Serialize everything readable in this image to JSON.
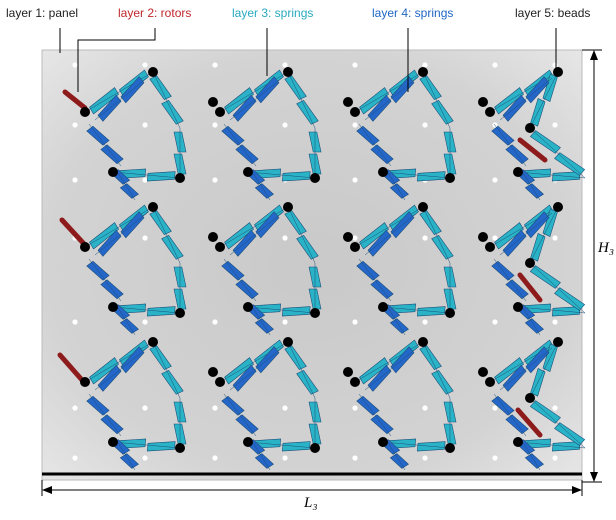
{
  "labels": {
    "layer1": "layer 1: panel",
    "layer2": "layer 2: rotors",
    "layer3": "layer 3: springs",
    "layer4": "layer 4: springs",
    "layer5": "layer 5: beads"
  },
  "dimensions": {
    "height": "H₃",
    "length": "L₃"
  },
  "colors": {
    "panel": "#d4d4d4",
    "panel_edge": "#b9b9b9",
    "rotor": "#8e1b1b",
    "rotor_label": "#c0272d",
    "spring_layer3": "#2ab3c6",
    "spring_layer4": "#2467c9",
    "spring_label3": "#29a9c0",
    "spring_label4": "#1f66c4",
    "bead": "#000000",
    "hole": "#ffffff",
    "line": "#000000"
  }
}
